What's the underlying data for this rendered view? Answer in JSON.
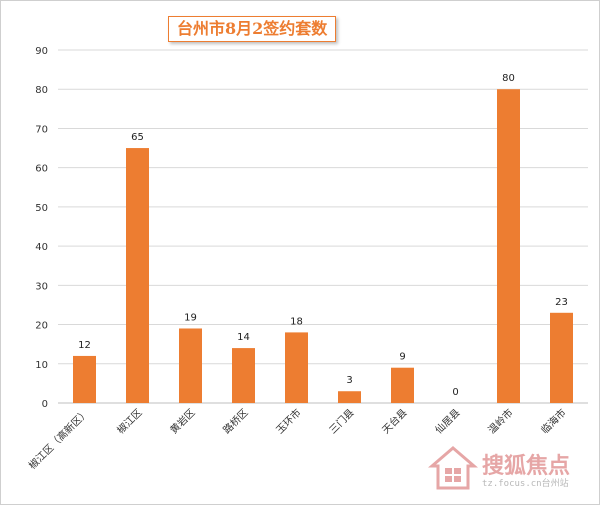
{
  "chart_data": {
    "type": "bar",
    "title": "台州市8月2签约套数",
    "categories": [
      "椒江区（高新区）",
      "椒江区",
      "黄岩区",
      "路桥区",
      "玉环市",
      "三门县",
      "天台县",
      "仙居县",
      "温岭市",
      "临海市"
    ],
    "values": [
      12,
      65,
      19,
      14,
      18,
      3,
      9,
      0,
      80,
      23
    ],
    "data_labels": [
      "12",
      "65",
      "19",
      "14",
      "18",
      "3",
      "9",
      "0",
      "80",
      "23"
    ],
    "yticks": [
      "0",
      "10",
      "20",
      "30",
      "40",
      "50",
      "60",
      "70",
      "80",
      "90"
    ],
    "ylim": [
      0,
      90
    ],
    "grid": true,
    "bar_color": "#ed7d31",
    "xlabel": "",
    "ylabel": ""
  },
  "watermark": {
    "brand": "搜狐焦点",
    "url": "tz.focus.cn台州站"
  }
}
